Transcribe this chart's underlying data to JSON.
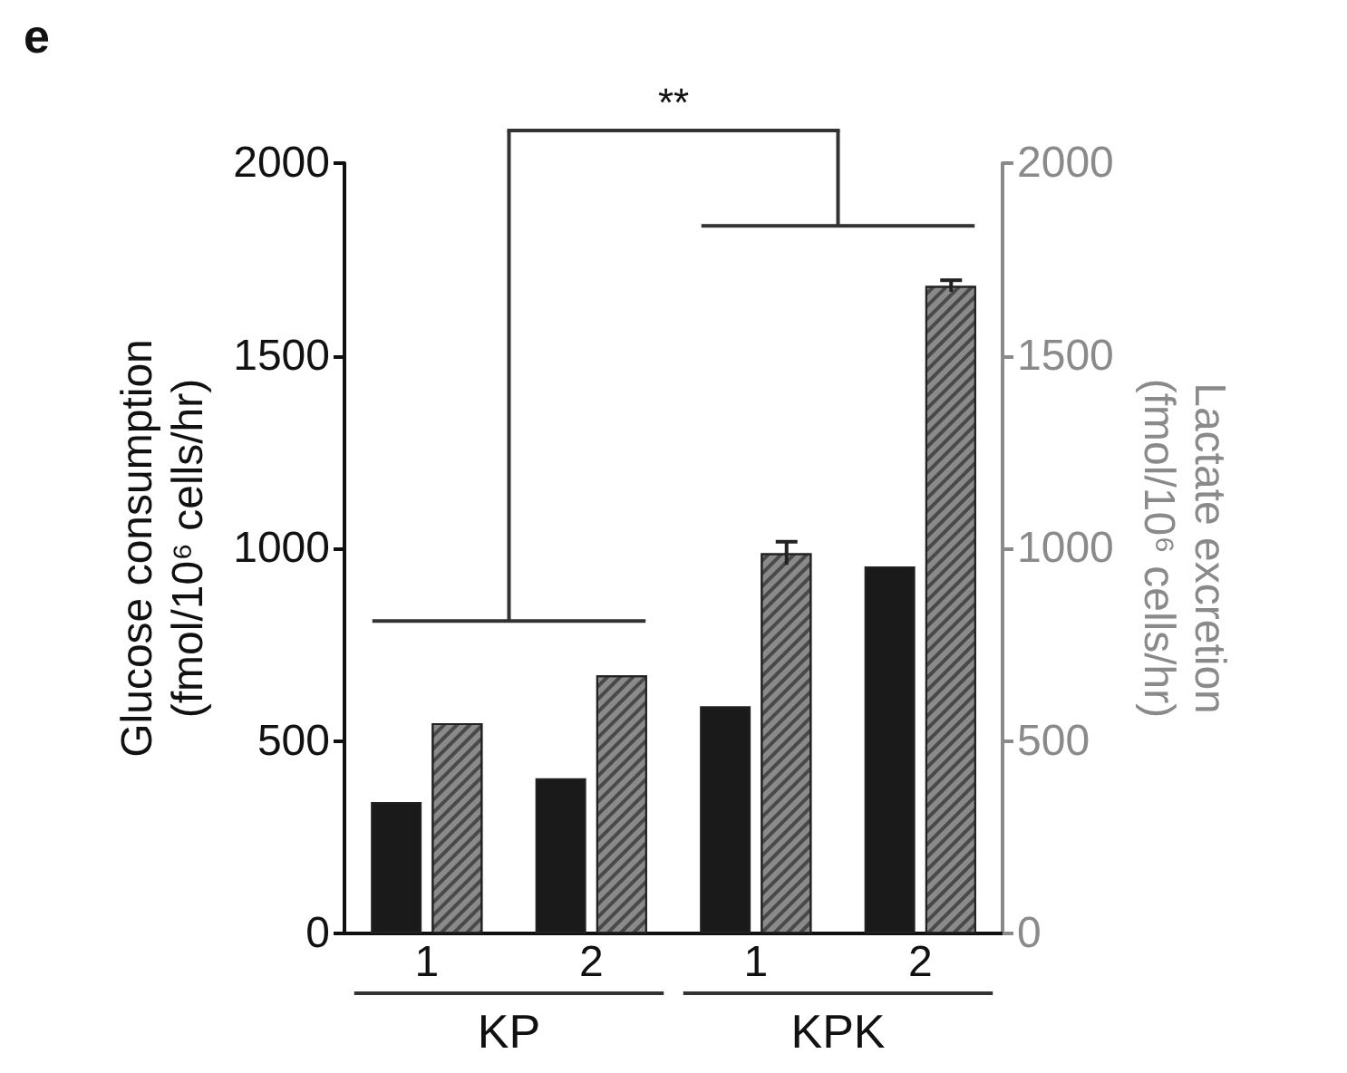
{
  "chart_data": {
    "type": "bar",
    "title": "e",
    "ylabel": "Glucose consumption\n(fmol/10⁶ cells/hr)",
    "y2label": "Lactate excretion\n(fmol/10⁶ cells/hr)",
    "categories": [
      "1",
      "2",
      "1",
      "2"
    ],
    "series": [
      {
        "color": "#1a1a1a",
        "values": [
          341,
          403,
          590,
          953
        ]
      },
      {
        "color": "#8a8a8a",
        "values": [
          546,
          670,
          987,
          1681
        ],
        "errors": [
          null,
          null,
          30,
          15
        ]
      }
    ],
    "ylim": [
      0,
      2000
    ],
    "yticks": [
      0,
      500,
      1000,
      1500,
      2000
    ],
    "y2lim": [
      0,
      2000
    ],
    "y2ticks": [
      0,
      500,
      1000,
      1500,
      2000
    ],
    "annotations": [
      "**",
      "KP",
      "KPK"
    ],
    "grid": false
  }
}
